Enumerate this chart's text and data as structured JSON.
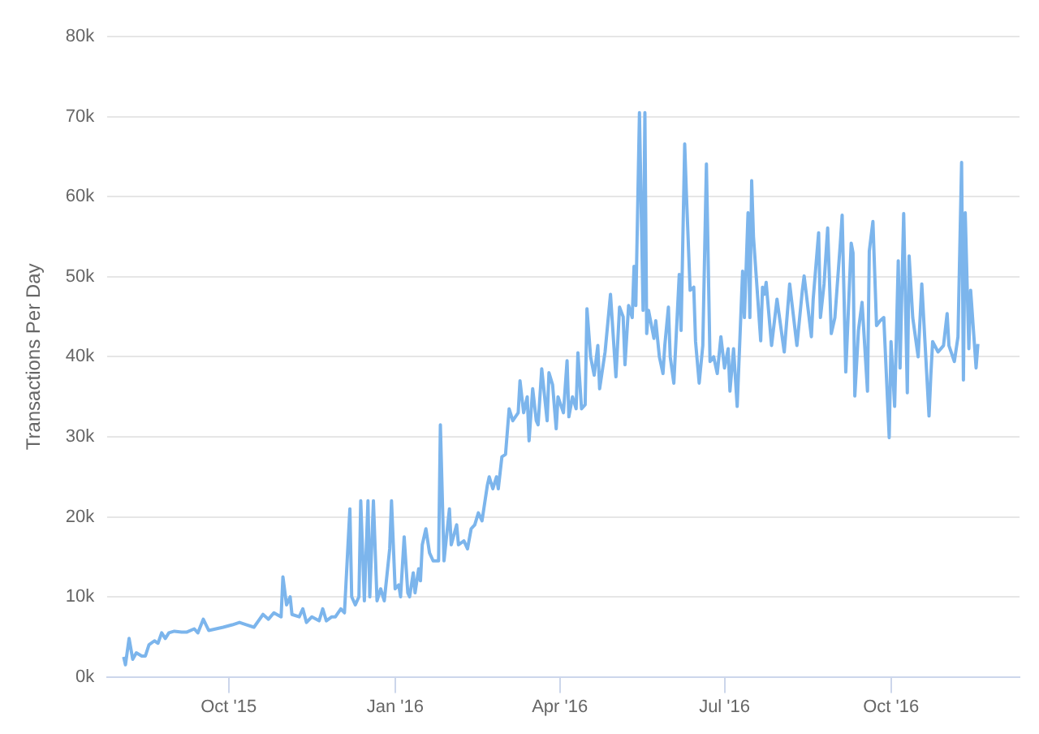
{
  "chart_data": {
    "type": "line",
    "ylabel": "Transactions Per Day",
    "x": [
      "2015-08-04",
      "2015-08-05",
      "2015-08-07",
      "2015-08-09",
      "2015-08-11",
      "2015-08-14",
      "2015-08-16",
      "2015-08-18",
      "2015-08-21",
      "2015-08-23",
      "2015-08-25",
      "2015-08-27",
      "2015-08-29",
      "2015-09-01",
      "2015-09-05",
      "2015-09-08",
      "2015-09-12",
      "2015-09-14",
      "2015-09-17",
      "2015-09-20",
      "2015-09-24",
      "2015-09-28",
      "2015-10-03",
      "2015-10-07",
      "2015-10-11",
      "2015-10-15",
      "2015-10-20",
      "2015-10-23",
      "2015-10-26",
      "2015-10-30",
      "2015-10-31",
      "2015-11-02",
      "2015-11-04",
      "2015-11-05",
      "2015-11-09",
      "2015-11-11",
      "2015-11-13",
      "2015-11-16",
      "2015-11-20",
      "2015-11-22",
      "2015-11-24",
      "2015-11-27",
      "2015-11-29",
      "2015-12-02",
      "2015-12-04",
      "2015-12-07",
      "2015-12-08",
      "2015-12-10",
      "2015-12-12",
      "2015-12-13",
      "2015-12-15",
      "2015-12-17",
      "2015-12-18",
      "2015-12-20",
      "2015-12-22",
      "2015-12-24",
      "2015-12-26",
      "2015-12-29",
      "2015-12-30",
      "2016-01-01",
      "2016-01-03",
      "2016-01-04",
      "2016-01-06",
      "2016-01-08",
      "2016-01-09",
      "2016-01-11",
      "2016-01-12",
      "2016-01-14",
      "2016-01-15",
      "2016-01-16",
      "2016-01-18",
      "2016-01-20",
      "2016-01-22",
      "2016-01-25",
      "2016-01-26",
      "2016-01-28",
      "2016-01-31",
      "2016-02-01",
      "2016-02-04",
      "2016-02-05",
      "2016-02-08",
      "2016-02-10",
      "2016-02-12",
      "2016-02-14",
      "2016-02-16",
      "2016-02-18",
      "2016-02-21",
      "2016-02-22",
      "2016-02-24",
      "2016-02-26",
      "2016-02-27",
      "2016-02-29",
      "2016-03-02",
      "2016-03-04",
      "2016-03-06",
      "2016-03-09",
      "2016-03-10",
      "2016-03-12",
      "2016-03-14",
      "2016-03-15",
      "2016-03-17",
      "2016-03-19",
      "2016-03-20",
      "2016-03-22",
      "2016-03-25",
      "2016-03-26",
      "2016-03-28",
      "2016-03-30",
      "2016-03-31",
      "2016-04-03",
      "2016-04-05",
      "2016-04-06",
      "2016-04-08",
      "2016-04-10",
      "2016-04-11",
      "2016-04-13",
      "2016-04-15",
      "2016-04-16",
      "2016-04-18",
      "2016-04-20",
      "2016-04-22",
      "2016-04-23",
      "2016-04-26",
      "2016-04-29",
      "2016-05-02",
      "2016-05-04",
      "2016-05-06",
      "2016-05-07",
      "2016-05-09",
      "2016-05-11",
      "2016-05-12",
      "2016-05-13",
      "2016-05-15",
      "2016-05-17",
      "2016-05-18",
      "2016-05-19",
      "2016-05-20",
      "2016-05-23",
      "2016-05-24",
      "2016-05-26",
      "2016-05-28",
      "2016-05-29",
      "2016-05-31",
      "2016-06-01",
      "2016-06-03",
      "2016-06-06",
      "2016-06-07",
      "2016-06-09",
      "2016-06-10",
      "2016-06-12",
      "2016-06-14",
      "2016-06-15",
      "2016-06-17",
      "2016-06-19",
      "2016-06-21",
      "2016-06-23",
      "2016-06-25",
      "2016-06-27",
      "2016-06-29",
      "2016-07-01",
      "2016-07-03",
      "2016-07-04",
      "2016-07-06",
      "2016-07-08",
      "2016-07-11",
      "2016-07-12",
      "2016-07-14",
      "2016-07-15",
      "2016-07-16",
      "2016-07-17",
      "2016-07-21",
      "2016-07-22",
      "2016-07-23",
      "2016-07-24",
      "2016-07-27",
      "2016-07-30",
      "2016-08-03",
      "2016-08-06",
      "2016-08-10",
      "2016-08-13",
      "2016-08-14",
      "2016-08-18",
      "2016-08-19",
      "2016-08-22",
      "2016-08-23",
      "2016-08-25",
      "2016-08-27",
      "2016-08-29",
      "2016-08-31",
      "2016-09-03",
      "2016-09-04",
      "2016-09-06",
      "2016-09-09",
      "2016-09-10",
      "2016-09-11",
      "2016-09-13",
      "2016-09-15",
      "2016-09-18",
      "2016-09-19",
      "2016-09-21",
      "2016-09-23",
      "2016-09-25",
      "2016-09-27",
      "2016-09-30",
      "2016-10-01",
      "2016-10-03",
      "2016-10-05",
      "2016-10-06",
      "2016-10-08",
      "2016-10-10",
      "2016-10-11",
      "2016-10-13",
      "2016-10-16",
      "2016-10-18",
      "2016-10-22",
      "2016-10-23",
      "2016-10-24",
      "2016-10-27",
      "2016-10-30",
      "2016-11-01",
      "2016-11-02",
      "2016-11-05",
      "2016-11-07",
      "2016-11-09",
      "2016-11-10",
      "2016-11-11",
      "2016-11-13",
      "2016-11-14",
      "2016-11-17",
      "2016-11-18"
    ],
    "series": [
      {
        "color": "#7cb5ec",
        "values": [
          2500,
          1500,
          4800,
          2200,
          3000,
          2600,
          2600,
          4000,
          4500,
          4200,
          5500,
          4800,
          5500,
          5700,
          5600,
          5600,
          6000,
          5500,
          7200,
          5800,
          6000,
          6200,
          6500,
          6800,
          6500,
          6200,
          7800,
          7200,
          8000,
          7500,
          12500,
          9000,
          10000,
          7800,
          7500,
          8500,
          6800,
          7500,
          7000,
          8500,
          7000,
          7500,
          7500,
          8500,
          8000,
          21000,
          10000,
          9000,
          10000,
          22000,
          9500,
          22000,
          10000,
          22000,
          9500,
          11000,
          9500,
          16000,
          22000,
          11000,
          11500,
          10000,
          17500,
          10500,
          10000,
          13000,
          10500,
          13500,
          12000,
          16500,
          18500,
          15500,
          14500,
          14500,
          31500,
          14500,
          21000,
          16500,
          19000,
          16500,
          17000,
          16000,
          18500,
          19000,
          20500,
          19500,
          24000,
          25000,
          23500,
          25000,
          23500,
          27500,
          27800,
          33500,
          32000,
          33000,
          37000,
          33000,
          35000,
          29500,
          36000,
          32000,
          31500,
          38500,
          32000,
          38000,
          36500,
          31000,
          35000,
          33000,
          39500,
          32500,
          35000,
          33500,
          40500,
          33500,
          34000,
          46000,
          40000,
          37700,
          41400,
          36000,
          40600,
          47800,
          37500,
          46200,
          45000,
          39000,
          46400,
          44900,
          51300,
          46400,
          70500,
          45800,
          70500,
          42900,
          45800,
          42300,
          44500,
          40000,
          37900,
          41400,
          46200,
          40000,
          36700,
          50300,
          43300,
          66600,
          60000,
          48300,
          48700,
          41900,
          36700,
          41400,
          64100,
          39400,
          40000,
          37900,
          42500,
          38600,
          41000,
          35700,
          41000,
          33800,
          50700,
          44900,
          58000,
          44900,
          62000,
          55000,
          42000,
          48700,
          47800,
          49300,
          41400,
          47200,
          40600,
          49100,
          41400,
          48300,
          50100,
          42500,
          47200,
          55500,
          44900,
          49100,
          56100,
          42900,
          44900,
          54200,
          57700,
          38100,
          54200,
          53000,
          35100,
          43300,
          46800,
          35700,
          53200,
          56900,
          43900,
          44500,
          44900,
          29900,
          41900,
          33800,
          52000,
          38600,
          57900,
          35500,
          52600,
          44900,
          40000,
          49100,
          32600,
          37700,
          41900,
          40600,
          41400,
          45400,
          41400,
          39400,
          42500,
          64300,
          37100,
          58000,
          41000,
          48300,
          38600,
          41600
        ]
      }
    ],
    "xlim": [
      "2015-07-26",
      "2016-12-11"
    ],
    "xticks": [
      {
        "value": "2015-10-01",
        "label": "Oct '15"
      },
      {
        "value": "2016-01-01",
        "label": "Jan '16"
      },
      {
        "value": "2016-04-01",
        "label": "Apr '16"
      },
      {
        "value": "2016-07-01",
        "label": "Jul '16"
      },
      {
        "value": "2016-10-01",
        "label": "Oct '16"
      }
    ],
    "ylim": [
      0,
      80000
    ],
    "yticks": [
      {
        "value": 0,
        "label": "0k"
      },
      {
        "value": 10000,
        "label": "10k"
      },
      {
        "value": 20000,
        "label": "20k"
      },
      {
        "value": 30000,
        "label": "30k"
      },
      {
        "value": 40000,
        "label": "40k"
      },
      {
        "value": 50000,
        "label": "50k"
      },
      {
        "value": 60000,
        "label": "60k"
      },
      {
        "value": 70000,
        "label": "70k"
      },
      {
        "value": 80000,
        "label": "80k"
      }
    ],
    "grid": "y",
    "legend": false,
    "marker": "none",
    "line_style": "solid"
  }
}
